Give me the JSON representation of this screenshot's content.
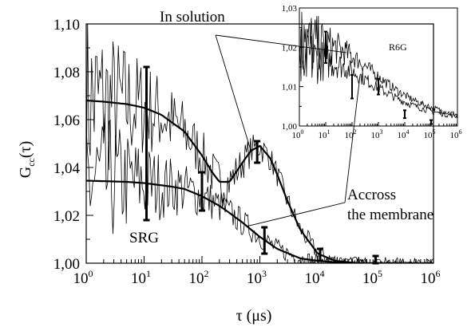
{
  "chart_data": [
    {
      "type": "line",
      "xscale": "log",
      "xlim": [
        1,
        1000000
      ],
      "ylim": [
        1.0,
        1.1
      ],
      "xlabel": "τ (μs)",
      "ylabel_main": "G",
      "ylabel_sub": "cc",
      "ylabel_tail": "(τ)",
      "x_ticks": [
        {
          "base": "10",
          "exp": "0",
          "value": 1
        },
        {
          "base": "10",
          "exp": "1",
          "value": 10
        },
        {
          "base": "10",
          "exp": "2",
          "value": 100
        },
        {
          "base": "10",
          "exp": "3",
          "value": 1000
        },
        {
          "base": "10",
          "exp": "4",
          "value": 10000
        },
        {
          "base": "10",
          "exp": "5",
          "value": 100000
        },
        {
          "base": "10",
          "exp": "6",
          "value": 1000000
        }
      ],
      "y_ticks": [
        {
          "label": "1,00",
          "value": 1.0
        },
        {
          "label": "1,02",
          "value": 1.02
        },
        {
          "label": "1,04",
          "value": 1.04
        },
        {
          "label": "1,06",
          "value": 1.06
        },
        {
          "label": "1,08",
          "value": 1.08
        },
        {
          "label": "1,10",
          "value": 1.1
        }
      ],
      "series": [
        {
          "key": "solution_fit",
          "x": [
            1,
            2,
            5,
            10,
            20,
            50,
            100,
            150,
            200,
            300,
            500,
            700,
            1000,
            1500,
            2000,
            3000,
            5000,
            10000,
            20000,
            50000,
            100000,
            1000000
          ],
          "y": [
            1.068,
            1.0675,
            1.0665,
            1.065,
            1.062,
            1.055,
            1.045,
            1.038,
            1.034,
            1.034,
            1.042,
            1.047,
            1.049,
            1.044,
            1.037,
            1.026,
            1.014,
            1.004,
            1.001,
            1.0,
            1.0,
            1.0
          ]
        },
        {
          "key": "membrane_fit",
          "x": [
            1,
            5,
            10,
            30,
            50,
            100,
            200,
            300,
            500,
            1000,
            2000,
            5000,
            10000,
            30000,
            100000,
            1000000
          ],
          "y": [
            1.0345,
            1.034,
            1.0335,
            1.032,
            1.031,
            1.028,
            1.024,
            1.021,
            1.017,
            1.011,
            1.006,
            1.002,
            1.001,
            1.0,
            1.0,
            1.0
          ]
        }
      ],
      "error_bars": [
        {
          "x": 11,
          "y": 1.05,
          "lo": 1.018,
          "hi": 1.082
        },
        {
          "x": 100,
          "y": 1.03,
          "lo": 1.022,
          "hi": 1.038
        },
        {
          "x": 900,
          "y": 1.046,
          "lo": 1.042,
          "hi": 1.051
        },
        {
          "x": 1200,
          "y": 1.01,
          "lo": 1.004,
          "hi": 1.015
        },
        {
          "x": 11000,
          "y": 1.003,
          "lo": 1.001,
          "hi": 1.006
        },
        {
          "x": 100000,
          "y": 1.001,
          "lo": 1.0,
          "hi": 1.003
        }
      ],
      "annotations": {
        "solution": "In solution",
        "membrane_line1": "Accross",
        "membrane_line2": "the membrane",
        "dye": "SRG"
      }
    },
    {
      "type": "line",
      "xscale": "log",
      "xlim": [
        1,
        1000000
      ],
      "ylim": [
        1.0,
        1.03
      ],
      "x_ticks": [
        {
          "base": "10",
          "exp": "0",
          "value": 1
        },
        {
          "base": "10",
          "exp": "1",
          "value": 10
        },
        {
          "base": "10",
          "exp": "2",
          "value": 100
        },
        {
          "base": "10",
          "exp": "3",
          "value": 1000
        },
        {
          "base": "10",
          "exp": "4",
          "value": 10000
        },
        {
          "base": "10",
          "exp": "5",
          "value": 100000
        },
        {
          "base": "10",
          "exp": "6",
          "value": 1000000
        }
      ],
      "y_ticks": [
        {
          "label": "1,00",
          "value": 1.0
        },
        {
          "label": "1,01",
          "value": 1.01
        },
        {
          "label": "1,02",
          "value": 1.02
        },
        {
          "label": "1,03",
          "value": 1.03
        }
      ],
      "error_bars": [
        {
          "x": 10,
          "y": 1.02,
          "lo": 1.016,
          "hi": 1.024
        },
        {
          "x": 100,
          "y": 1.01,
          "lo": 1.007,
          "hi": 1.013
        },
        {
          "x": 1000,
          "y": 1.01,
          "lo": 1.008,
          "hi": 1.012
        },
        {
          "x": 10000,
          "y": 1.003,
          "lo": 1.002,
          "hi": 1.004
        },
        {
          "x": 100000,
          "y": 1.001,
          "lo": 1.0005,
          "hi": 1.0015
        }
      ],
      "annotations": {
        "dye": "R6G"
      }
    }
  ]
}
